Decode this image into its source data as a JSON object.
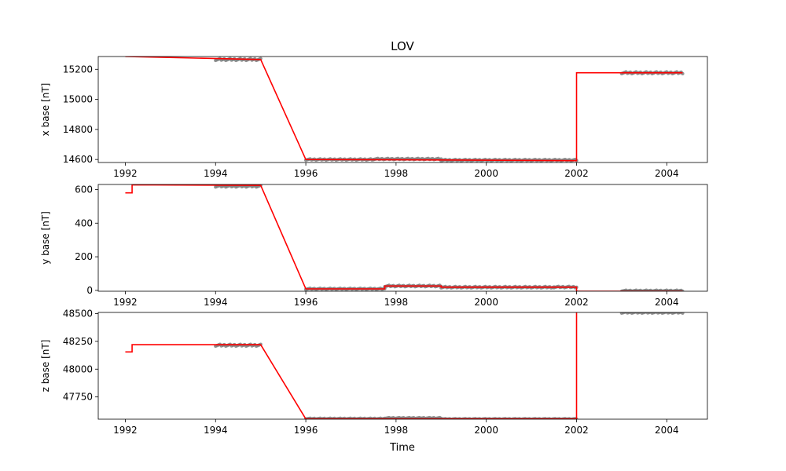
{
  "title": "LOV",
  "xlabel": "Time",
  "colors": {
    "obs": "#808080",
    "fit": "#ff0000",
    "axis": "#000000"
  },
  "chart_data": [
    {
      "type": "line",
      "ylabel": "x base [nT]",
      "xlim": [
        1991.4,
        2004.9
      ],
      "ylim": [
        14580,
        15285
      ],
      "xticks": [
        1992,
        1994,
        1996,
        1998,
        2000,
        2002,
        2004
      ],
      "yticks": [
        14600,
        14800,
        15000,
        15200
      ],
      "observations": [
        {
          "x0": 1994.0,
          "x1": 1995.0,
          "y": 15265,
          "spread": 6
        },
        {
          "x0": 1996.0,
          "x1": 1997.5,
          "y": 14600,
          "spread": 4
        },
        {
          "x0": 1997.5,
          "x1": 1999.0,
          "y": 14603,
          "spread": 4
        },
        {
          "x0": 1999.0,
          "x1": 2002.0,
          "y": 14596,
          "spread": 4
        },
        {
          "x0": 2003.0,
          "x1": 2004.35,
          "y": 15177,
          "spread": 6
        }
      ],
      "series": [
        {
          "x": [
            1992.0,
            1995.0,
            1996.0,
            1998.0,
            2002.0,
            2002.0,
            2004.35
          ],
          "y": [
            15285,
            15265,
            14600,
            14598,
            14592,
            15177,
            15177
          ]
        }
      ]
    },
    {
      "type": "line",
      "ylabel": "y base [nT]",
      "xlim": [
        1991.4,
        2004.9
      ],
      "ylim": [
        -5,
        630
      ],
      "xticks": [
        1992,
        1994,
        1996,
        1998,
        2000,
        2002,
        2004
      ],
      "yticks": [
        0,
        200,
        400,
        600
      ],
      "observations": [
        {
          "x0": 1994.0,
          "x1": 1995.0,
          "y": 620,
          "spread": 5
        },
        {
          "x0": 1996.0,
          "x1": 1997.75,
          "y": 9,
          "spread": 3
        },
        {
          "x0": 1997.75,
          "x1": 1999.0,
          "y": 26,
          "spread": 4
        },
        {
          "x0": 1999.0,
          "x1": 2001.5,
          "y": 19,
          "spread": 4
        },
        {
          "x0": 2001.5,
          "x1": 2002.0,
          "y": 20,
          "spread": 4
        },
        {
          "x0": 2003.0,
          "x1": 2004.35,
          "y": -2,
          "spread": 3
        }
      ],
      "series": [
        {
          "x": [
            1992.0,
            1992.15,
            1992.15,
            1995.0,
            1996.0,
            1997.75,
            1997.75,
            1999.0,
            1999.0,
            2002.0,
            2002.0,
            2004.35
          ],
          "y": [
            580,
            580,
            628,
            625,
            9,
            9,
            26,
            26,
            19,
            19,
            -5,
            -5
          ]
        }
      ]
    },
    {
      "type": "line",
      "ylabel": "z base [nT]",
      "xlim": [
        1991.4,
        2004.9
      ],
      "ylim": [
        47550,
        48510
      ],
      "xticks": [
        1992,
        1994,
        1996,
        1998,
        2000,
        2002,
        2004
      ],
      "yticks": [
        47750,
        48000,
        48250,
        48500
      ],
      "xlabel": "Time",
      "observations": [
        {
          "x0": 1994.0,
          "x1": 1995.0,
          "y": 48215,
          "spread": 8
        },
        {
          "x0": 1996.0,
          "x1": 1997.75,
          "y": 47555,
          "spread": 3
        },
        {
          "x0": 1997.75,
          "x1": 1999.0,
          "y": 47560,
          "spread": 4
        },
        {
          "x0": 1999.0,
          "x1": 2002.0,
          "y": 47552,
          "spread": 3
        },
        {
          "x0": 2003.0,
          "x1": 2004.35,
          "y": 48510,
          "spread": 6
        }
      ],
      "series": [
        {
          "x": [
            1992.0,
            1992.15,
            1992.15,
            1995.0,
            1996.0,
            2002.0,
            2002.0,
            2004.35
          ],
          "y": [
            48155,
            48155,
            48220,
            48220,
            47552,
            47552,
            48520,
            48520
          ]
        }
      ]
    }
  ]
}
